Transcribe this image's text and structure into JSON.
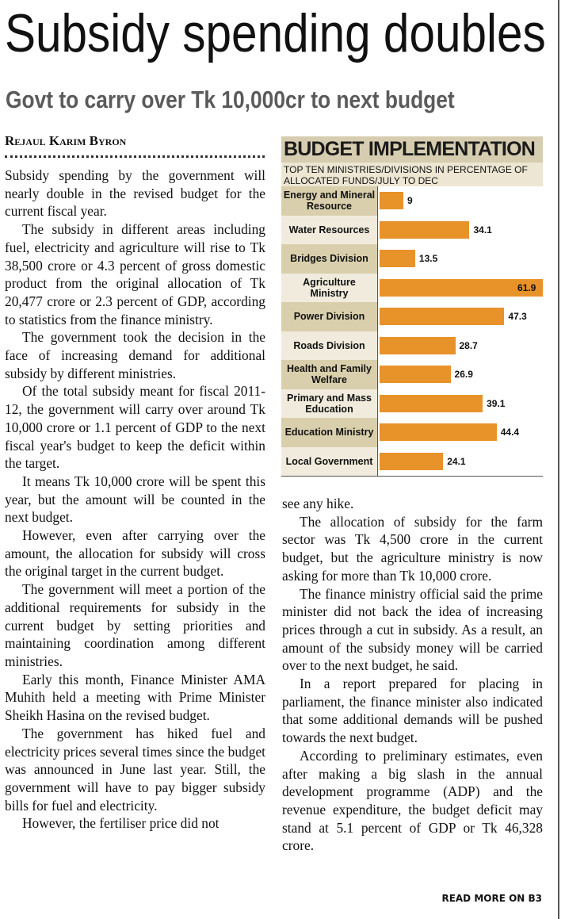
{
  "header": {
    "title": "Subsidy spending doubles",
    "subtitle": "Govt to carry over Tk 10,000cr to next budget",
    "byline": "Rejaul Karim Byron"
  },
  "left_column": [
    "Subsidy spending by the government will nearly double in the revised budget for the current fiscal year.",
    "The subsidy in different areas including fuel, electricity and agriculture will rise to Tk 38,500 crore or 4.3 percent of gross domestic product from the original allocation of Tk 20,477 crore or 2.3 percent of GDP, according to statistics from the finance ministry.",
    "The government took the decision in the face of increasing demand for additional subsidy by different ministries.",
    "Of the total subsidy meant for fiscal 2011-12, the government will carry over around Tk 10,000 crore or 1.1 percent of GDP to the next fiscal year's budget to keep the deficit within the target.",
    "It means Tk 10,000 crore will be spent this year, but the amount will be counted in the next budget.",
    "However, even after carrying over the amount, the allocation for subsidy will cross the original target in the current budget.",
    "The government will meet a portion of the additional requirements for subsidy in the current budget by setting priorities and maintaining coordination among different ministries.",
    "Early this month, Finance Minister AMA Muhith held a meeting with Prime Minister Sheikh Hasina on the revised budget.",
    "The government has hiked fuel and electricity prices several times since the budget was announced in June last year. Still, the government will have to pay bigger subsidy bills for fuel and electricity.",
    "However, the fertiliser price did not"
  ],
  "right_column": [
    "see any hike.",
    "The allocation of subsidy for the farm sector was Tk 4,500 crore in the current budget, but the agriculture ministry is now asking for more than Tk 10,000 crore.",
    "The finance ministry official said the prime minister did not back the idea of increasing prices through a cut in subsidy. As a result, an amount of the subsidy money will be carried over to the next budget, he said.",
    "In a report prepared for placing in parliament, the finance minister also indicated that some additional demands will be pushed towards the next budget.",
    "According to preliminary estimates, even after making a big slash in the annual development programme (ADP) and the revenue expenditure, the budget deficit may stand at 5.1 percent of GDP or Tk 46,328 crore."
  ],
  "footer": "READ MORE ON B3",
  "chart_data": {
    "type": "bar",
    "orientation": "horizontal",
    "title": "BUDGET IMPLEMENTATION",
    "subtitle": "TOP TEN MINISTRIES/DIVISIONS IN PERCENTAGE OF ALLOCATED FUNDS/JULY TO DEC",
    "categories": [
      "Energy and Mineral Resource",
      "Water Resources",
      "Bridges Division",
      "Agriculture Ministry",
      "Power Division",
      "Roads Division",
      "Health and Family Welfare",
      "Primary and Mass Education",
      "Education Ministry",
      "Local Government"
    ],
    "values": [
      9,
      34.1,
      13.5,
      61.9,
      47.3,
      28.7,
      26.9,
      39.1,
      44.4,
      24.1
    ],
    "color": "#e8922a"
  }
}
